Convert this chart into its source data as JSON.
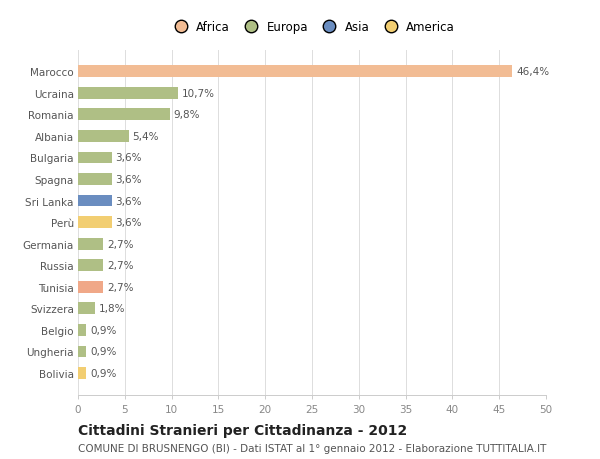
{
  "countries": [
    "Marocco",
    "Ucraina",
    "Romania",
    "Albania",
    "Bulgaria",
    "Spagna",
    "Sri Lanka",
    "Perù",
    "Germania",
    "Russia",
    "Tunisia",
    "Svizzera",
    "Belgio",
    "Ungheria",
    "Bolivia"
  ],
  "values": [
    46.4,
    10.7,
    9.8,
    5.4,
    3.6,
    3.6,
    3.6,
    3.6,
    2.7,
    2.7,
    2.7,
    1.8,
    0.9,
    0.9,
    0.9
  ],
  "labels": [
    "46,4%",
    "10,7%",
    "9,8%",
    "5,4%",
    "3,6%",
    "3,6%",
    "3,6%",
    "3,6%",
    "2,7%",
    "2,7%",
    "2,7%",
    "1,8%",
    "0,9%",
    "0,9%",
    "0,9%"
  ],
  "colors": [
    "#F2BC94",
    "#AFBF85",
    "#AFBF85",
    "#AFBF85",
    "#AFBF85",
    "#AFBF85",
    "#6A8DC0",
    "#F2CE72",
    "#AFBF85",
    "#AFBF85",
    "#F0A888",
    "#AFBF85",
    "#AFBF85",
    "#AFBF85",
    "#F2CE72"
  ],
  "continent_colors": {
    "Africa": "#F2BC94",
    "Europa": "#AFBF85",
    "Asia": "#6A8DC0",
    "America": "#F2CE72"
  },
  "title": "Cittadini Stranieri per Cittadinanza - 2012",
  "subtitle": "COMUNE DI BRUSNENGO (BI) - Dati ISTAT al 1° gennaio 2012 - Elaborazione TUTTITALIA.IT",
  "xlim": [
    0,
    50
  ],
  "xticks": [
    0,
    5,
    10,
    15,
    20,
    25,
    30,
    35,
    40,
    45,
    50
  ],
  "background_color": "#ffffff",
  "bar_height": 0.55,
  "label_fontsize": 7.5,
  "title_fontsize": 10,
  "subtitle_fontsize": 7.5,
  "tick_fontsize": 7.5,
  "legend_fontsize": 8.5
}
